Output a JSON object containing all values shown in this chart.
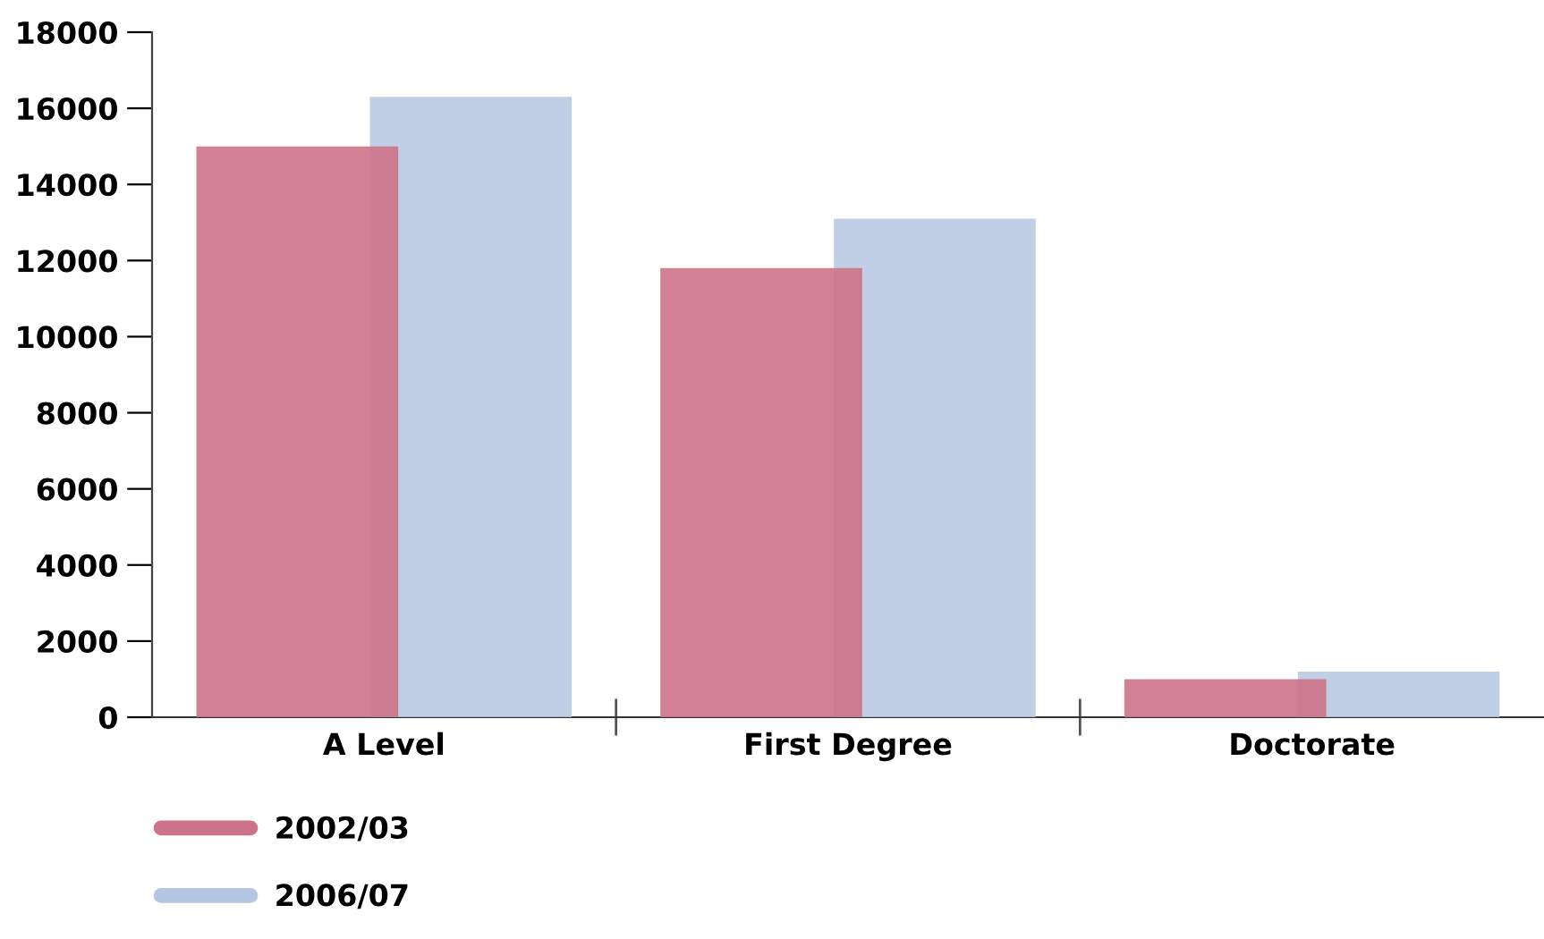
{
  "chart_data": {
    "type": "bar",
    "categories": [
      "A Level",
      "First Degree",
      "Doctorate"
    ],
    "series": [
      {
        "name": "2002/03",
        "color": "#cc7387",
        "values": [
          15000,
          11800,
          1000
        ]
      },
      {
        "name": "2006/07",
        "color": "#b5c6e2",
        "values": [
          16300,
          13100,
          1200
        ]
      }
    ],
    "ylim": [
      0,
      18000
    ],
    "yticks": [
      0,
      2000,
      4000,
      6000,
      8000,
      10000,
      12000,
      14000,
      16000,
      18000
    ],
    "grid": false,
    "legend": "bottom left"
  }
}
